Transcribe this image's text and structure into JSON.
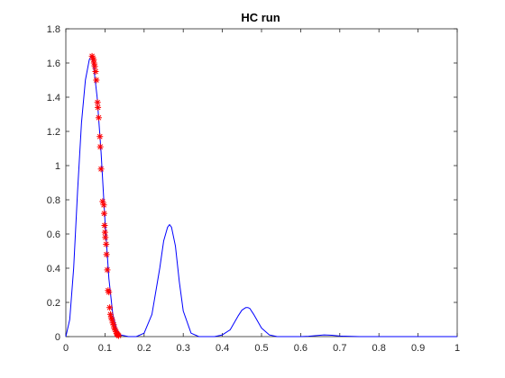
{
  "chart_data": {
    "type": "line",
    "title": "HC run",
    "xlabel": "",
    "ylabel": "",
    "xlim": [
      0,
      1
    ],
    "ylim": [
      0,
      1.8
    ],
    "xticks": [
      0,
      0.1,
      0.2,
      0.3,
      0.4,
      0.5,
      0.6,
      0.7,
      0.8,
      0.9,
      1
    ],
    "xtick_labels": [
      "0",
      "0.1",
      "0.2",
      "0.3",
      "0.4",
      "0.5",
      "0.6",
      "0.7",
      "0.8",
      "0.9",
      "1"
    ],
    "yticks": [
      0,
      0.2,
      0.4,
      0.6,
      0.8,
      1,
      1.2,
      1.4,
      1.6,
      1.8
    ],
    "ytick_labels": [
      "0",
      "0.2",
      "0.4",
      "0.6",
      "0.8",
      "1",
      "1.2",
      "1.4",
      "1.6",
      "1.8"
    ],
    "grid": false,
    "box": true,
    "series": [
      {
        "kind": "line",
        "color": "#0000ff",
        "x": [
          0,
          0.01,
          0.02,
          0.03,
          0.04,
          0.05,
          0.06,
          0.065,
          0.07,
          0.075,
          0.08,
          0.09,
          0.1,
          0.11,
          0.12,
          0.13,
          0.14,
          0.16,
          0.18,
          0.2,
          0.22,
          0.24,
          0.25,
          0.26,
          0.265,
          0.27,
          0.28,
          0.29,
          0.3,
          0.32,
          0.34,
          0.36,
          0.38,
          0.4,
          0.42,
          0.44,
          0.45,
          0.46,
          0.465,
          0.47,
          0.48,
          0.5,
          0.52,
          0.54,
          0.56,
          0.6,
          0.62,
          0.64,
          0.66,
          0.68,
          0.7,
          0.75,
          0.8,
          0.9,
          1
        ],
        "y": [
          0,
          0.1,
          0.4,
          0.85,
          1.25,
          1.5,
          1.62,
          1.64,
          1.6,
          1.5,
          1.4,
          1.08,
          0.68,
          0.34,
          0.13,
          0.04,
          0.01,
          0,
          0,
          0.02,
          0.13,
          0.4,
          0.56,
          0.64,
          0.655,
          0.64,
          0.53,
          0.32,
          0.15,
          0.02,
          0,
          0,
          0,
          0.01,
          0.04,
          0.12,
          0.155,
          0.17,
          0.17,
          0.165,
          0.13,
          0.05,
          0.01,
          0,
          0,
          0,
          0.002,
          0.006,
          0.01,
          0.008,
          0.003,
          0,
          0,
          0,
          0
        ]
      },
      {
        "kind": "marker",
        "marker": "*",
        "color": "#ff0000",
        "x": [
          0.067,
          0.069,
          0.071,
          0.072,
          0.074,
          0.076,
          0.078,
          0.081,
          0.082,
          0.084,
          0.087,
          0.088,
          0.09,
          0.094,
          0.097,
          0.098,
          0.099,
          0.1,
          0.101,
          0.103,
          0.104,
          0.106,
          0.108,
          0.11,
          0.112,
          0.114,
          0.116,
          0.118,
          0.12,
          0.122,
          0.124,
          0.126,
          0.128,
          0.13,
          0.131,
          0.133,
          0.135
        ],
        "y": [
          1.64,
          1.63,
          1.62,
          1.6,
          1.58,
          1.55,
          1.5,
          1.37,
          1.34,
          1.28,
          1.17,
          1.11,
          0.98,
          0.79,
          0.77,
          0.72,
          0.65,
          0.61,
          0.58,
          0.54,
          0.48,
          0.39,
          0.27,
          0.26,
          0.17,
          0.13,
          0.11,
          0.1,
          0.08,
          0.07,
          0.05,
          0.04,
          0.03,
          0.02,
          0.015,
          0.01,
          0.005
        ]
      }
    ]
  }
}
